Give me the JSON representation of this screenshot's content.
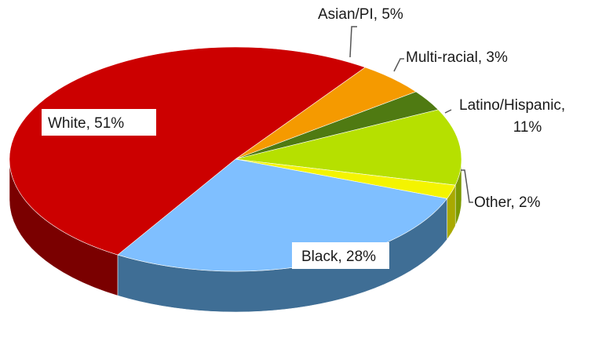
{
  "chart_data": {
    "type": "pie",
    "title": "",
    "three_d": true,
    "legend": "none",
    "slices": [
      {
        "label": "Asian/PI",
        "value": 5,
        "value_text": "5%",
        "color": "#f59a00",
        "side_color": "#a86a00"
      },
      {
        "label": "Multi-racial",
        "value": 3,
        "value_text": "3%",
        "color": "#4f7a12",
        "side_color": "#34520a"
      },
      {
        "label": "Latino/Hispanic",
        "value": 11,
        "value_text": "11%",
        "color": "#b6e000",
        "side_color": "#7c9a00"
      },
      {
        "label": "Other",
        "value": 2,
        "value_text": "2%",
        "color": "#f4f400",
        "side_color": "#a9a900"
      },
      {
        "label": "Black",
        "value": 28,
        "value_text": "28%",
        "color": "#7fbfff",
        "side_color": "#3f6e95"
      },
      {
        "label": "White",
        "value": 51,
        "value_text": "51%",
        "color": "#cc0000",
        "side_color": "#7a0000"
      }
    ]
  }
}
